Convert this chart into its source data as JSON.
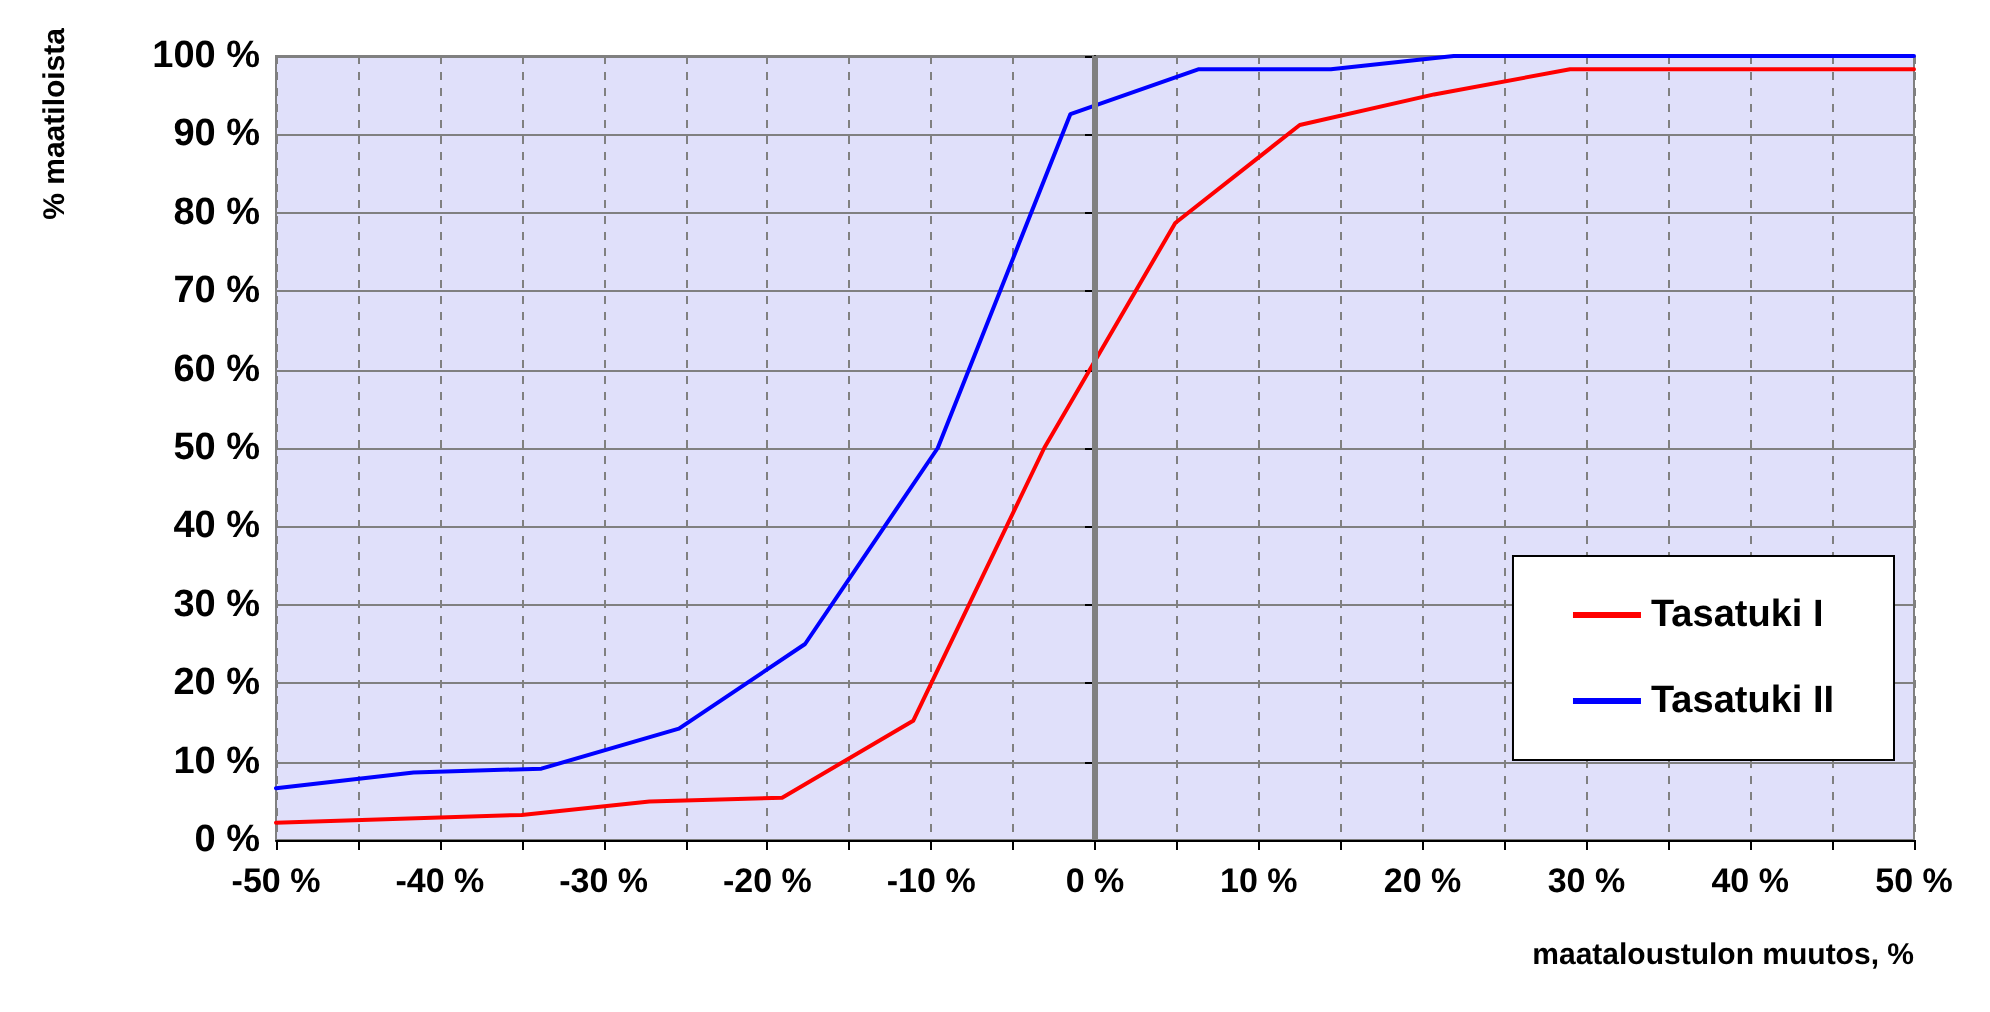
{
  "chart_data": {
    "type": "line",
    "xlabel": "maataloustulon muutos, %",
    "ylabel": "% maatiloista",
    "series": [
      {
        "name": "Tasatuki I",
        "color": "#ff0000",
        "x": [
          -50,
          -35,
          -27.2,
          -19.1,
          -11.1,
          -3.1,
          4.9,
          12.5,
          20.7,
          29,
          50
        ],
        "values": [
          2.2,
          3.2,
          4.9,
          5.4,
          15.2,
          50,
          78.7,
          91.2,
          95.1,
          98.3,
          98.3
        ]
      },
      {
        "name": "Tasatuki II",
        "color": "#0000ff",
        "x": [
          -50,
          -41.6,
          -33.8,
          -25.4,
          -17.7,
          -9.6,
          -1.5,
          6.3,
          14.4,
          21.9,
          50
        ],
        "values": [
          6.6,
          8.6,
          9.1,
          14.2,
          25,
          50,
          92.6,
          98.3,
          98.3,
          100,
          100
        ]
      }
    ],
    "xlim": [
      -50,
      50
    ],
    "xticks": [
      {
        "value": -50,
        "label": "-50 %"
      },
      {
        "value": -45,
        "label": null
      },
      {
        "value": -40,
        "label": "-40 %"
      },
      {
        "value": -35,
        "label": null
      },
      {
        "value": -30,
        "label": "-30 %"
      },
      {
        "value": -25,
        "label": null
      },
      {
        "value": -20,
        "label": "-20 %"
      },
      {
        "value": -15,
        "label": null
      },
      {
        "value": -10,
        "label": "-10 %"
      },
      {
        "value": -5,
        "label": null
      },
      {
        "value": 0,
        "label": "0 %"
      },
      {
        "value": 5,
        "label": null
      },
      {
        "value": 10,
        "label": "10 %"
      },
      {
        "value": 15,
        "label": null
      },
      {
        "value": 20,
        "label": "20 %"
      },
      {
        "value": 25,
        "label": null
      },
      {
        "value": 30,
        "label": "30 %"
      },
      {
        "value": 35,
        "label": null
      },
      {
        "value": 40,
        "label": "40 %"
      },
      {
        "value": 45,
        "label": null
      },
      {
        "value": 50,
        "label": "50 %"
      }
    ],
    "ylim": [
      0,
      100
    ],
    "yticks": [
      {
        "value": 0,
        "label": "0 %"
      },
      {
        "value": 10,
        "label": "10 %"
      },
      {
        "value": 20,
        "label": "20 %"
      },
      {
        "value": 30,
        "label": "30 %"
      },
      {
        "value": 40,
        "label": "40 %"
      },
      {
        "value": 50,
        "label": "50 %"
      },
      {
        "value": 60,
        "label": "60 %"
      },
      {
        "value": 70,
        "label": "70 %"
      },
      {
        "value": 80,
        "label": "80 %"
      },
      {
        "value": 90,
        "label": "90 %"
      },
      {
        "value": 100,
        "label": "100 %"
      }
    ],
    "ref_lines": [
      {
        "axis": "x",
        "value": 0,
        "color": "#808080",
        "line_style": "solid"
      }
    ],
    "grid": true,
    "legend": "right",
    "marker": "none",
    "line_style": "solid"
  }
}
